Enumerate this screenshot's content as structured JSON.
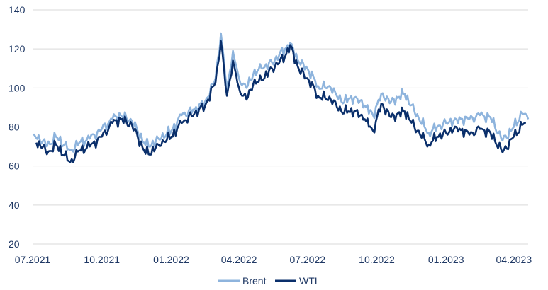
{
  "chart_data": {
    "type": "line",
    "title": "",
    "xlabel": "",
    "ylabel": "",
    "ylim": [
      20,
      140
    ],
    "yticks": [
      20,
      40,
      60,
      80,
      100,
      120,
      140
    ],
    "xlim": [
      "2021-07-01",
      "2023-04-20"
    ],
    "xticks": [
      {
        "date": "2021-07-01",
        "label": "07.2021"
      },
      {
        "date": "2021-10-01",
        "label": "10.2021"
      },
      {
        "date": "2022-01-01",
        "label": "01.2022"
      },
      {
        "date": "2022-04-01",
        "label": "04.2022"
      },
      {
        "date": "2022-07-01",
        "label": "07.2022"
      },
      {
        "date": "2022-10-01",
        "label": "10.2022"
      },
      {
        "date": "2023-01-01",
        "label": "01.2023"
      },
      {
        "date": "2023-04-01",
        "label": "04.2023"
      }
    ],
    "grid": true,
    "legend": "bottom",
    "colors": {
      "brent": "#8eb4dd",
      "wti": "#0a2f6b",
      "grid": "#d9d9d9",
      "text": "#1f3864"
    },
    "series": [
      {
        "name": "Brent",
        "x": [
          "2021-07-01",
          "2021-07-15",
          "2021-07-20",
          "2021-08-01",
          "2021-08-20",
          "2021-09-01",
          "2021-09-15",
          "2021-10-01",
          "2021-10-15",
          "2021-10-26",
          "2021-11-10",
          "2021-11-26",
          "2021-12-02",
          "2021-12-15",
          "2022-01-01",
          "2022-01-15",
          "2022-02-01",
          "2022-02-15",
          "2022-03-01",
          "2022-03-08",
          "2022-03-16",
          "2022-03-24",
          "2022-04-01",
          "2022-04-11",
          "2022-04-20",
          "2022-05-01",
          "2022-05-15",
          "2022-06-01",
          "2022-06-08",
          "2022-06-20",
          "2022-07-01",
          "2022-07-15",
          "2022-08-01",
          "2022-08-15",
          "2022-09-01",
          "2022-09-15",
          "2022-09-26",
          "2022-10-07",
          "2022-10-20",
          "2022-11-07",
          "2022-11-20",
          "2022-12-09",
          "2022-12-20",
          "2023-01-01",
          "2023-01-15",
          "2023-02-01",
          "2023-02-15",
          "2023-03-01",
          "2023-03-17",
          "2023-04-01",
          "2023-04-12",
          "2023-04-20"
        ],
        "values": [
          76,
          73,
          70,
          75,
          68,
          72,
          74,
          79,
          84,
          86,
          83,
          72,
          70,
          74,
          78,
          86,
          89,
          93,
          105,
          128,
          100,
          119,
          105,
          100,
          107,
          110,
          113,
          120,
          123,
          113,
          110,
          101,
          100,
          93,
          95,
          91,
          86,
          97,
          93,
          97,
          88,
          77,
          80,
          82,
          84,
          84,
          86,
          85,
          73,
          80,
          87,
          84
        ]
      },
      {
        "name": "WTI",
        "x": [
          "2021-07-06",
          "2021-07-15",
          "2021-07-20",
          "2021-08-01",
          "2021-08-20",
          "2021-09-01",
          "2021-09-15",
          "2021-10-01",
          "2021-10-15",
          "2021-10-26",
          "2021-11-10",
          "2021-11-26",
          "2021-12-02",
          "2021-12-15",
          "2022-01-01",
          "2022-01-15",
          "2022-02-01",
          "2022-02-15",
          "2022-03-01",
          "2022-03-08",
          "2022-03-16",
          "2022-03-24",
          "2022-04-01",
          "2022-04-11",
          "2022-04-20",
          "2022-05-01",
          "2022-05-15",
          "2022-06-01",
          "2022-06-08",
          "2022-06-20",
          "2022-07-01",
          "2022-07-15",
          "2022-08-01",
          "2022-08-15",
          "2022-09-01",
          "2022-09-15",
          "2022-09-26",
          "2022-10-07",
          "2022-10-20",
          "2022-11-07",
          "2022-11-20",
          "2022-12-09",
          "2022-12-20",
          "2023-01-01",
          "2023-01-15",
          "2023-02-01",
          "2023-02-15",
          "2023-03-01",
          "2023-03-17",
          "2023-04-01",
          "2023-04-12",
          "2023-04-17"
        ],
        "values": [
          72,
          70,
          66,
          71,
          62,
          68,
          70,
          75,
          82,
          84,
          81,
          68,
          66,
          71,
          75,
          82,
          87,
          91,
          103,
          124,
          96,
          114,
          100,
          94,
          102,
          104,
          110,
          116,
          122,
          109,
          105,
          96,
          94,
          88,
          88,
          84,
          78,
          92,
          85,
          88,
          80,
          71,
          75,
          77,
          80,
          76,
          79,
          77,
          67,
          75,
          81,
          82
        ]
      }
    ]
  }
}
